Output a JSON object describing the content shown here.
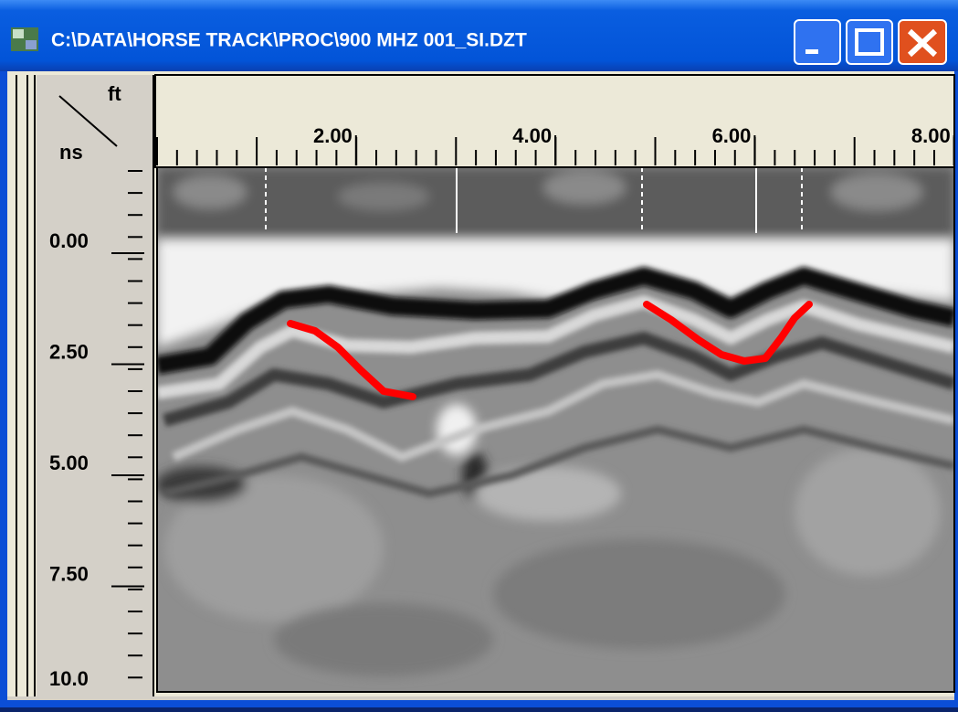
{
  "window": {
    "title": "C:\\DATA\\HORSE TRACK\\PROC\\900 MHZ 001_SI.DZT"
  },
  "ruler": {
    "x_unit": "ft",
    "y_unit": "ns",
    "x_labels": [
      "2.00",
      "4.00",
      "6.00",
      "8.00"
    ],
    "y_labels": [
      "0.00",
      "2.50",
      "5.00",
      "7.50",
      "10.0"
    ]
  }
}
